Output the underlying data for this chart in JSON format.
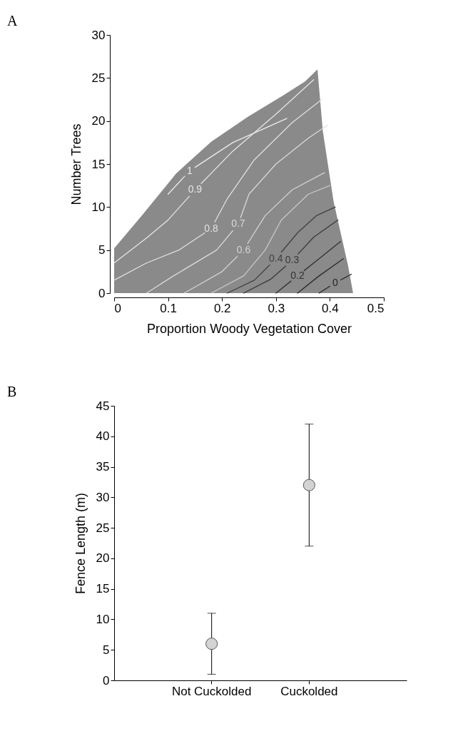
{
  "chart_data": [
    {
      "type": "line",
      "title": "A",
      "xlabel": "Proportion Woody Vegetation Cover",
      "ylabel": "Number Trees",
      "xlim": [
        0,
        0.5
      ],
      "xticks": [
        0,
        0.1,
        0.2,
        0.3,
        0.4,
        0.5
      ],
      "ylim": [
        0,
        30
      ],
      "yticks": [
        0,
        5,
        10,
        15,
        20,
        25,
        30
      ],
      "grid": false,
      "legend": false,
      "series": [
        {
          "type": "area",
          "color": "#8a8a8a",
          "x": [
            0,
            0,
            0.05,
            0.115,
            0.18,
            0.248,
            0.314,
            0.354,
            0.377,
            0.387,
            0.407,
            0.434,
            0.443
          ],
          "values": [
            0,
            5.2,
            8.9,
            13.9,
            17.6,
            20.5,
            23,
            24.6,
            26,
            18.8,
            10.6,
            3.1,
            0
          ]
        },
        {
          "name": "1",
          "color": "#ececec",
          "x": [
            0.1,
            0.14,
            0.22,
            0.32
          ],
          "values": [
            11.5,
            14.2,
            17.5,
            20.3
          ]
        },
        {
          "name": "0.9",
          "color": "#e6e6e6",
          "x": [
            0,
            0.06,
            0.1,
            0.15,
            0.22,
            0.3,
            0.37
          ],
          "values": [
            3.5,
            6.4,
            8.5,
            12,
            16.5,
            20.8,
            24.8
          ]
        },
        {
          "name": "0.8",
          "color": "#e0e0e0",
          "x": [
            0,
            0.06,
            0.12,
            0.18,
            0.21,
            0.26,
            0.33,
            0.385
          ],
          "values": [
            1.5,
            3.5,
            5,
            7.5,
            11,
            15.5,
            19.8,
            22.5
          ]
        },
        {
          "name": "0.7",
          "color": "#dadada",
          "x": [
            0.06,
            0.11,
            0.19,
            0.23,
            0.25,
            0.3,
            0.36,
            0.395
          ],
          "values": [
            0,
            2,
            5,
            8,
            11.5,
            15,
            18,
            19.5
          ]
        },
        {
          "name": "0.6",
          "color": "#d2d2d2",
          "x": [
            0.13,
            0.2,
            0.24,
            0.28,
            0.33,
            0.39
          ],
          "values": [
            0,
            2.5,
            5,
            9,
            12,
            14
          ]
        },
        {
          "color": "#c8c8c8",
          "x": [
            0.18,
            0.24,
            0.28,
            0.31,
            0.36,
            0.4
          ],
          "values": [
            0,
            2,
            5,
            8.5,
            11.5,
            12.5
          ]
        },
        {
          "name": "0.4",
          "color": "#404040",
          "x": [
            0.21,
            0.26,
            0.3,
            0.34,
            0.375,
            0.41
          ],
          "values": [
            0,
            1.5,
            4,
            7,
            9,
            10
          ]
        },
        {
          "name": "0.3",
          "color": "#383838",
          "x": [
            0.24,
            0.29,
            0.33,
            0.37,
            0.415
          ],
          "values": [
            0,
            1.6,
            3.8,
            6.5,
            8.5
          ]
        },
        {
          "name": "0.2",
          "color": "#303030",
          "x": [
            0.3,
            0.34,
            0.38,
            0.42
          ],
          "values": [
            0,
            2,
            4,
            6
          ]
        },
        {
          "color": "#2a2a2a",
          "x": [
            0.34,
            0.38,
            0.425
          ],
          "values": [
            0,
            2,
            4
          ]
        },
        {
          "name": "0",
          "color": "#222222",
          "x": [
            0.38,
            0.41,
            0.44
          ],
          "values": [
            0,
            1.2,
            2.2
          ]
        }
      ]
    },
    {
      "type": "scatter",
      "title": "B",
      "ylabel": "Fence Length (m)",
      "categories": [
        "Not Cuckolded",
        "Cuckolded"
      ],
      "ylim": [
        0,
        45
      ],
      "yticks": [
        0,
        5,
        10,
        15,
        20,
        25,
        30,
        35,
        40,
        45
      ],
      "grid": false,
      "legend": false,
      "marker": "circle",
      "series": [
        {
          "color": "#d3d3d3",
          "values": [
            6,
            32
          ],
          "errors": [
            [
              1,
              11
            ],
            [
              22,
              42
            ]
          ]
        }
      ]
    }
  ]
}
